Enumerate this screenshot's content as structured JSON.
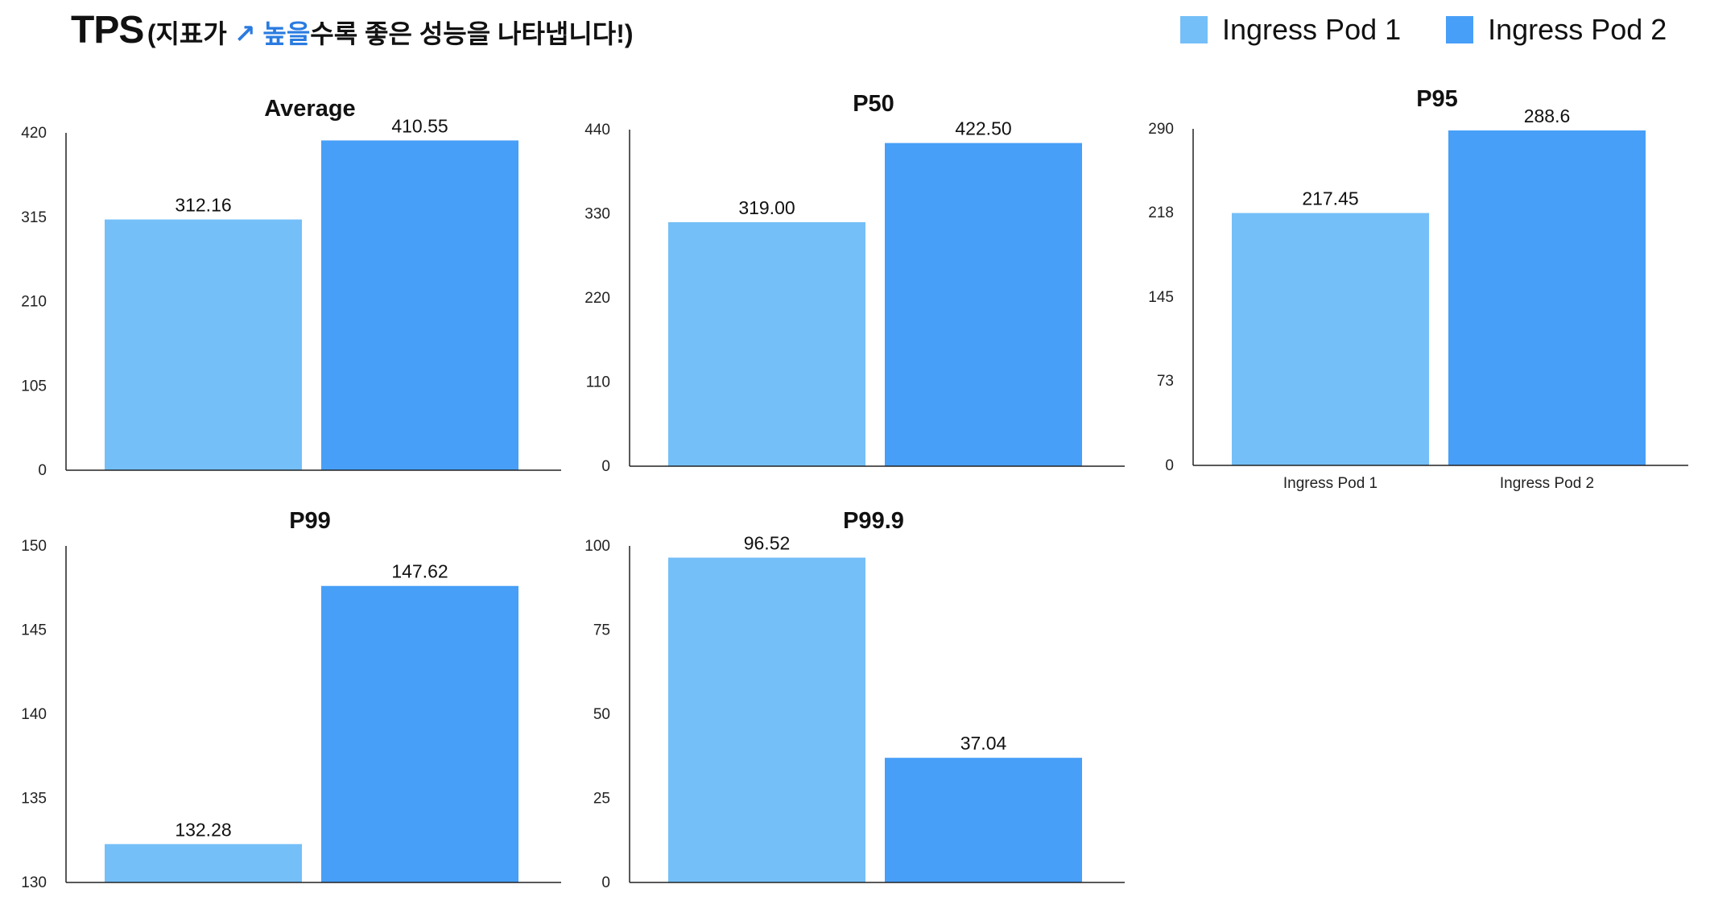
{
  "header": {
    "title": "TPS",
    "subtitle_open": "(지표가 ",
    "subtitle_highlight": "↗ 높을",
    "subtitle_close": "수록 좋은 성능을 나타냅니다!)"
  },
  "legend": [
    {
      "label": "Ingress Pod 1",
      "color": "#74bff8"
    },
    {
      "label": "Ingress Pod 2",
      "color": "#479ff8"
    }
  ],
  "chart_data": [
    {
      "type": "bar",
      "title": "Average",
      "categories": [
        "Ingress Pod 1",
        "Ingress Pod 2"
      ],
      "values": [
        312.16,
        410.55
      ],
      "data_labels": [
        "312.16",
        "410.55"
      ],
      "yticks": [
        "0",
        "105",
        "210",
        "315",
        "420"
      ],
      "ylim": [
        0,
        420
      ],
      "show_xlabels": false,
      "grid": false
    },
    {
      "type": "bar",
      "title": "P50",
      "categories": [
        "Ingress Pod 1",
        "Ingress Pod 2"
      ],
      "values": [
        319.0,
        422.5
      ],
      "data_labels": [
        "319.00",
        "422.50"
      ],
      "yticks": [
        "0",
        "110",
        "220",
        "330",
        "440"
      ],
      "ylim": [
        0,
        440
      ],
      "show_xlabels": false,
      "grid": false
    },
    {
      "type": "bar",
      "title": "P95",
      "categories": [
        "Ingress Pod 1",
        "Ingress Pod 2"
      ],
      "values": [
        217.45,
        288.6
      ],
      "data_labels": [
        "217.45",
        "288.6"
      ],
      "yticks": [
        "0",
        "73",
        "145",
        "218",
        "290"
      ],
      "ylim": [
        0,
        290
      ],
      "show_xlabels": true,
      "grid": false
    },
    {
      "type": "bar",
      "title": "P99",
      "categories": [
        "Ingress Pod 1",
        "Ingress Pod 2"
      ],
      "values": [
        132.28,
        147.62
      ],
      "data_labels": [
        "132.28",
        "147.62"
      ],
      "yticks": [
        "130",
        "135",
        "140",
        "145",
        "150"
      ],
      "ylim": [
        130,
        150
      ],
      "show_xlabels": false,
      "grid": false
    },
    {
      "type": "bar",
      "title": "P99.9",
      "categories": [
        "Ingress Pod 1",
        "Ingress Pod 2"
      ],
      "values": [
        96.52,
        37.04
      ],
      "data_labels": [
        "96.52",
        "37.04"
      ],
      "yticks": [
        "0",
        "25",
        "50",
        "75",
        "100"
      ],
      "ylim": [
        0,
        100
      ],
      "show_xlabels": false,
      "grid": false
    }
  ]
}
